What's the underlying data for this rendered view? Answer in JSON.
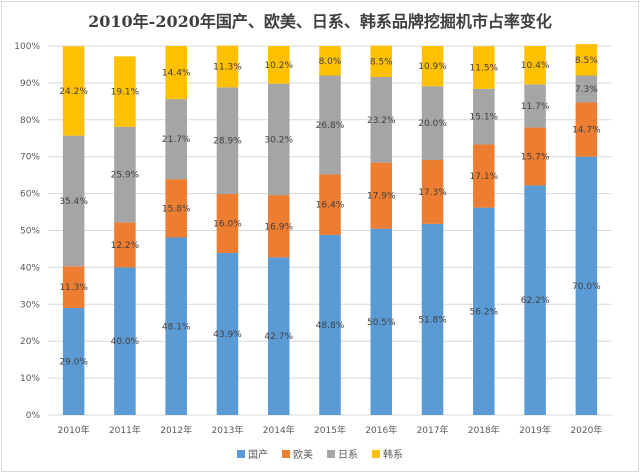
{
  "chart_data": {
    "type": "bar",
    "stacked": true,
    "title": "2010年-2020年国产、欧美、日系、韩系品牌挖掘机市占率变化",
    "categories": [
      "2010年",
      "2011年",
      "2012年",
      "2013年",
      "2014年",
      "2015年",
      "2016年",
      "2017年",
      "2018年",
      "2019年",
      "2020年"
    ],
    "series": [
      {
        "name": "国产",
        "color": "#5b9bd5",
        "values": [
          29.0,
          40.0,
          48.1,
          43.9,
          42.7,
          48.8,
          50.5,
          51.8,
          56.2,
          62.2,
          70.0
        ]
      },
      {
        "name": "欧美",
        "color": "#ed7d31",
        "values": [
          11.3,
          12.2,
          15.8,
          16.0,
          16.9,
          16.4,
          17.9,
          17.3,
          17.1,
          15.7,
          14.7
        ]
      },
      {
        "name": "日系",
        "color": "#a5a5a5",
        "values": [
          35.4,
          25.9,
          21.7,
          28.9,
          30.2,
          26.8,
          23.2,
          20.0,
          15.1,
          11.7,
          7.3
        ]
      },
      {
        "name": "韩系",
        "color": "#ffc000",
        "values": [
          24.2,
          19.1,
          14.4,
          11.3,
          10.2,
          8.0,
          8.5,
          10.9,
          11.5,
          10.4,
          8.5
        ]
      }
    ],
    "y_ticks": [
      "0%",
      "10%",
      "20%",
      "30%",
      "40%",
      "50%",
      "60%",
      "70%",
      "80%",
      "90%",
      "100%"
    ],
    "ylim": [
      0,
      100
    ],
    "grid": true,
    "legend_position": "bottom"
  }
}
